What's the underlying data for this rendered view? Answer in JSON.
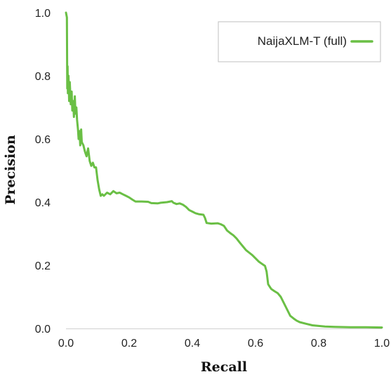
{
  "chart_data": {
    "type": "line",
    "title": "",
    "xlabel": "Recall",
    "ylabel": "Precision",
    "xlim": [
      0.0,
      1.0
    ],
    "ylim": [
      0.0,
      1.0
    ],
    "xticks": [
      "0.0",
      "0.2",
      "0.4",
      "0.6",
      "0.8",
      "1.0"
    ],
    "yticks": [
      "0.0",
      "0.2",
      "0.4",
      "0.6",
      "0.8",
      "1.0"
    ],
    "grid": false,
    "legend_position": "top-right",
    "series": [
      {
        "name": "NaijaXLM-T (full)",
        "color": "#6abf45",
        "points": [
          [
            0.0,
            1.0
          ],
          [
            0.003,
            0.985
          ],
          [
            0.004,
            0.76
          ],
          [
            0.005,
            0.83
          ],
          [
            0.006,
            0.745
          ],
          [
            0.008,
            0.8
          ],
          [
            0.01,
            0.72
          ],
          [
            0.012,
            0.78
          ],
          [
            0.015,
            0.71
          ],
          [
            0.018,
            0.75
          ],
          [
            0.02,
            0.69
          ],
          [
            0.023,
            0.72
          ],
          [
            0.025,
            0.67
          ],
          [
            0.028,
            0.735
          ],
          [
            0.03,
            0.68
          ],
          [
            0.033,
            0.7
          ],
          [
            0.035,
            0.66
          ],
          [
            0.038,
            0.63
          ],
          [
            0.04,
            0.6
          ],
          [
            0.043,
            0.625
          ],
          [
            0.045,
            0.58
          ],
          [
            0.048,
            0.63
          ],
          [
            0.05,
            0.59
          ],
          [
            0.055,
            0.58
          ],
          [
            0.06,
            0.56
          ],
          [
            0.065,
            0.545
          ],
          [
            0.07,
            0.57
          ],
          [
            0.075,
            0.53
          ],
          [
            0.08,
            0.515
          ],
          [
            0.085,
            0.525
          ],
          [
            0.09,
            0.51
          ],
          [
            0.095,
            0.51
          ],
          [
            0.1,
            0.47
          ],
          [
            0.105,
            0.44
          ],
          [
            0.11,
            0.42
          ],
          [
            0.115,
            0.425
          ],
          [
            0.12,
            0.42
          ],
          [
            0.13,
            0.43
          ],
          [
            0.14,
            0.425
          ],
          [
            0.15,
            0.435
          ],
          [
            0.16,
            0.428
          ],
          [
            0.17,
            0.43
          ],
          [
            0.18,
            0.425
          ],
          [
            0.19,
            0.42
          ],
          [
            0.2,
            0.415
          ],
          [
            0.21,
            0.408
          ],
          [
            0.22,
            0.402
          ],
          [
            0.24,
            0.402
          ],
          [
            0.26,
            0.401
          ],
          [
            0.27,
            0.397
          ],
          [
            0.29,
            0.396
          ],
          [
            0.3,
            0.398
          ],
          [
            0.32,
            0.4
          ],
          [
            0.335,
            0.403
          ],
          [
            0.34,
            0.398
          ],
          [
            0.35,
            0.394
          ],
          [
            0.36,
            0.396
          ],
          [
            0.37,
            0.392
          ],
          [
            0.38,
            0.385
          ],
          [
            0.39,
            0.375
          ],
          [
            0.4,
            0.37
          ],
          [
            0.41,
            0.365
          ],
          [
            0.42,
            0.362
          ],
          [
            0.435,
            0.36
          ],
          [
            0.44,
            0.35
          ],
          [
            0.445,
            0.334
          ],
          [
            0.46,
            0.332
          ],
          [
            0.48,
            0.333
          ],
          [
            0.49,
            0.33
          ],
          [
            0.5,
            0.325
          ],
          [
            0.51,
            0.31
          ],
          [
            0.52,
            0.302
          ],
          [
            0.53,
            0.295
          ],
          [
            0.54,
            0.285
          ],
          [
            0.55,
            0.272
          ],
          [
            0.56,
            0.26
          ],
          [
            0.57,
            0.248
          ],
          [
            0.58,
            0.24
          ],
          [
            0.59,
            0.232
          ],
          [
            0.6,
            0.222
          ],
          [
            0.61,
            0.212
          ],
          [
            0.62,
            0.205
          ],
          [
            0.63,
            0.198
          ],
          [
            0.635,
            0.18
          ],
          [
            0.64,
            0.14
          ],
          [
            0.645,
            0.132
          ],
          [
            0.65,
            0.125
          ],
          [
            0.66,
            0.118
          ],
          [
            0.67,
            0.112
          ],
          [
            0.68,
            0.1
          ],
          [
            0.69,
            0.08
          ],
          [
            0.7,
            0.06
          ],
          [
            0.71,
            0.04
          ],
          [
            0.72,
            0.032
          ],
          [
            0.73,
            0.025
          ],
          [
            0.74,
            0.02
          ],
          [
            0.76,
            0.015
          ],
          [
            0.78,
            0.01
          ],
          [
            0.8,
            0.008
          ],
          [
            0.82,
            0.006
          ],
          [
            0.85,
            0.005
          ],
          [
            0.9,
            0.004
          ],
          [
            0.95,
            0.004
          ],
          [
            1.0,
            0.003
          ]
        ]
      }
    ]
  }
}
